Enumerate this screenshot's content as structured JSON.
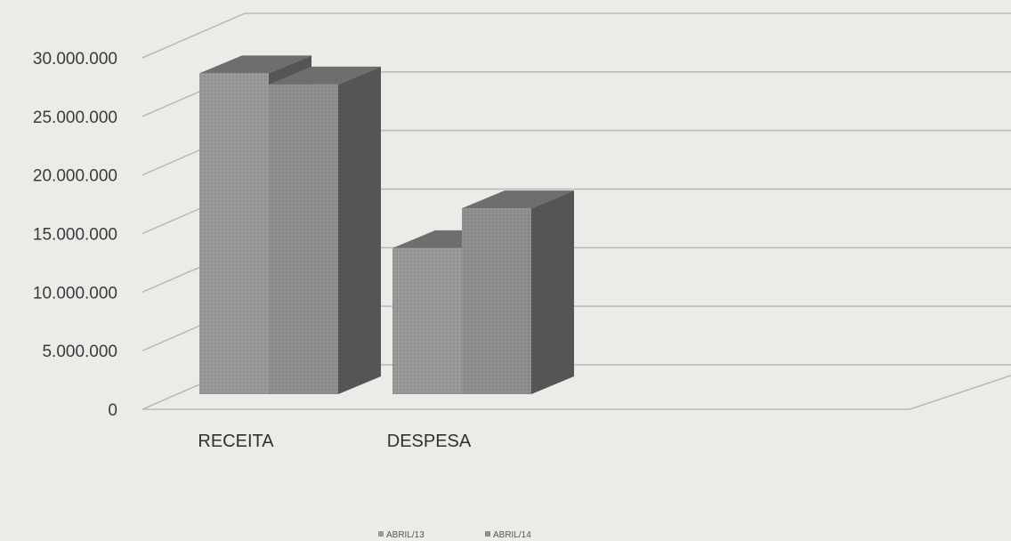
{
  "chart_data": {
    "type": "bar",
    "style": "3d-clustered-column",
    "categories": [
      "RECEITA",
      "DESPESA"
    ],
    "series": [
      {
        "name": "ABRIL/13",
        "values": [
          29000000,
          13200000
        ]
      },
      {
        "name": "ABRIL/14",
        "values": [
          28000000,
          16800000
        ]
      }
    ],
    "y_ticks": [
      "0",
      "5.000.000",
      "10.000.000",
      "15.000.000",
      "20.000.000",
      "25.000.000",
      "30.000.000"
    ],
    "tick_values": [
      0,
      5000000,
      10000000,
      15000000,
      20000000,
      25000000,
      30000000
    ],
    "ylim": [
      0,
      30000000
    ],
    "grid": true,
    "legend": "bottom",
    "colors": {
      "ABRIL/13": "#9a9a9a",
      "ABRIL/14": "#8f8f8f",
      "bar_side": "#555555",
      "bar_top": "#6e6e6e"
    }
  }
}
